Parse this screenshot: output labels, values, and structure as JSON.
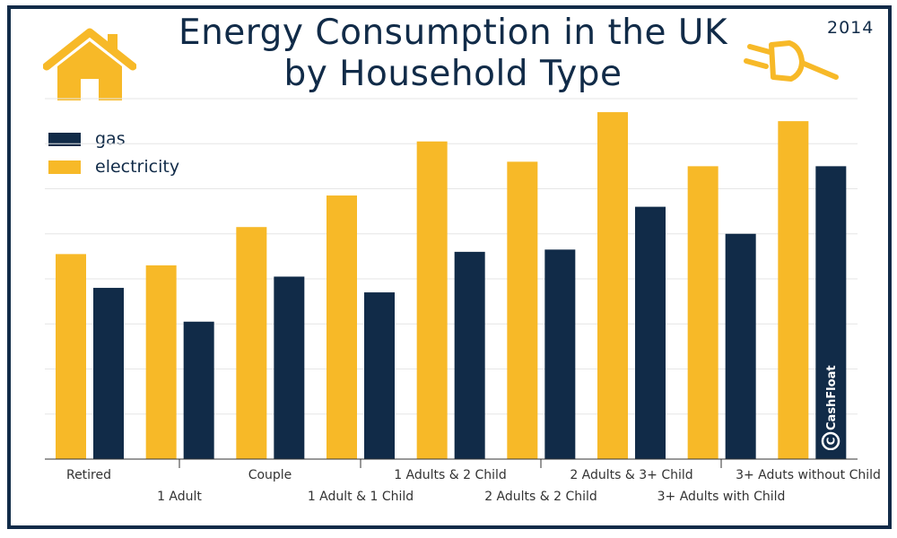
{
  "title_line1": "Energy Consumption in the UK",
  "title_line2": "by Household Type",
  "year": "2014",
  "brand": "CashFloat",
  "icons": {
    "house": "house-icon",
    "plug": "plug-icon",
    "brand_logo": "cashfloat-logo-icon"
  },
  "colors": {
    "gas": "#112b48",
    "electricity": "#f7b928",
    "grid": "#e6e6e6",
    "axis": "#333333"
  },
  "chart_data": {
    "type": "bar",
    "title": "Energy Consumption in the UK by Household Type",
    "xlabel": "",
    "ylabel": "",
    "ylim": [
      0,
      8
    ],
    "grid": true,
    "legend_position": "top-left",
    "categories": [
      "Retired",
      "1 Adult",
      "Couple",
      "1 Adult & 1 Child",
      "1 Adults & 2 Child",
      "2 Adults & 2 Child",
      "2 Adults & 3+ Child",
      "3+ Adults with Child",
      "3+ Aduts without Child"
    ],
    "series": [
      {
        "name": "electricity",
        "values": [
          4.55,
          4.3,
          5.15,
          5.85,
          7.05,
          6.6,
          7.7,
          6.5,
          7.5
        ]
      },
      {
        "name": "gas",
        "values": [
          3.8,
          3.05,
          4.05,
          3.7,
          4.6,
          4.65,
          5.6,
          5.0,
          6.5
        ]
      }
    ]
  }
}
